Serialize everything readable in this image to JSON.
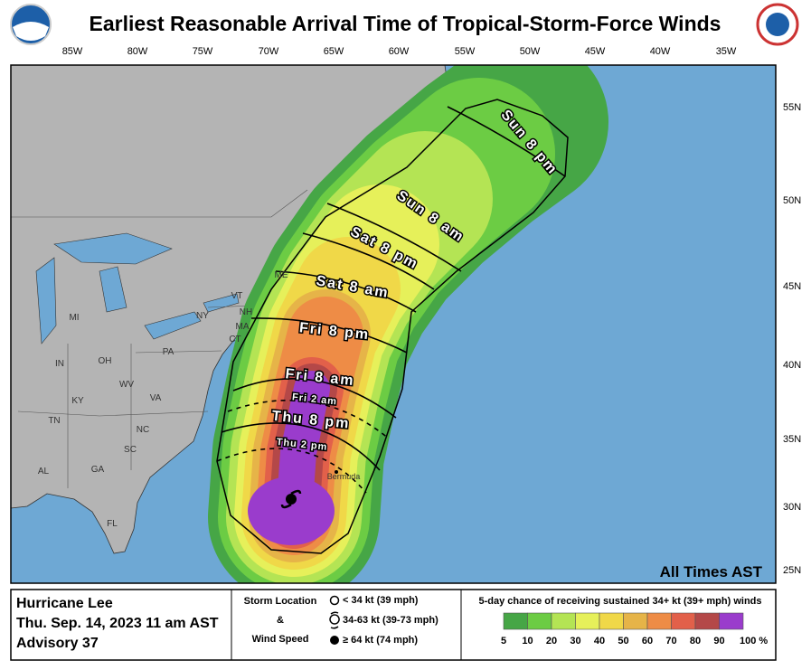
{
  "header": {
    "title": "Earliest Reasonable Arrival Time of Tropical-Storm-Force Winds"
  },
  "map": {
    "lon_labels": [
      "85W",
      "80W",
      "75W",
      "70W",
      "65W",
      "60W",
      "55W",
      "50W",
      "45W",
      "40W",
      "35W"
    ],
    "lat_labels": [
      "55N",
      "50N",
      "45N",
      "40N",
      "35N",
      "30N",
      "25N"
    ],
    "place_labels": [
      "MI",
      "NY",
      "PA",
      "OH",
      "IN",
      "KY",
      "WV",
      "VA",
      "NC",
      "TN",
      "SC",
      "GA",
      "AL",
      "FL",
      "VT",
      "NH",
      "MA",
      "CT",
      "ME",
      "Bermuda"
    ],
    "time_labels": [
      "Sun 8 pm",
      "Sun 8 am",
      "Sat 8 pm",
      "Sat 8 am",
      "Fri 8 pm",
      "Fri 8 am",
      "Fri 2 am",
      "Thu 8 pm",
      "Thu 2 pm"
    ],
    "note": "All Times AST"
  },
  "footer": {
    "storm": "Hurricane Lee",
    "date": "Thu. Sep. 14, 2023  11 am AST",
    "advisory": "Advisory 37",
    "storm_location": "Storm Location",
    "amp": "&",
    "wind_speed": "Wind Speed",
    "symbols": [
      "< 34 kt (39 mph)",
      "34-63 kt (39-73 mph)",
      "≥ 64 kt (74 mph)"
    ],
    "legend_title": "5-day chance of receiving sustained 34+ kt (39+ mph) winds",
    "legend_ticks": [
      "5",
      "10",
      "20",
      "30",
      "40",
      "50",
      "60",
      "70",
      "80",
      "90",
      "100 %"
    ],
    "legend_colors": [
      "#46a646",
      "#6ccc44",
      "#b4e454",
      "#e6f05a",
      "#f0d848",
      "#e6b448",
      "#ee8c46",
      "#e2604a",
      "#b44848",
      "#9a3ccc"
    ]
  }
}
